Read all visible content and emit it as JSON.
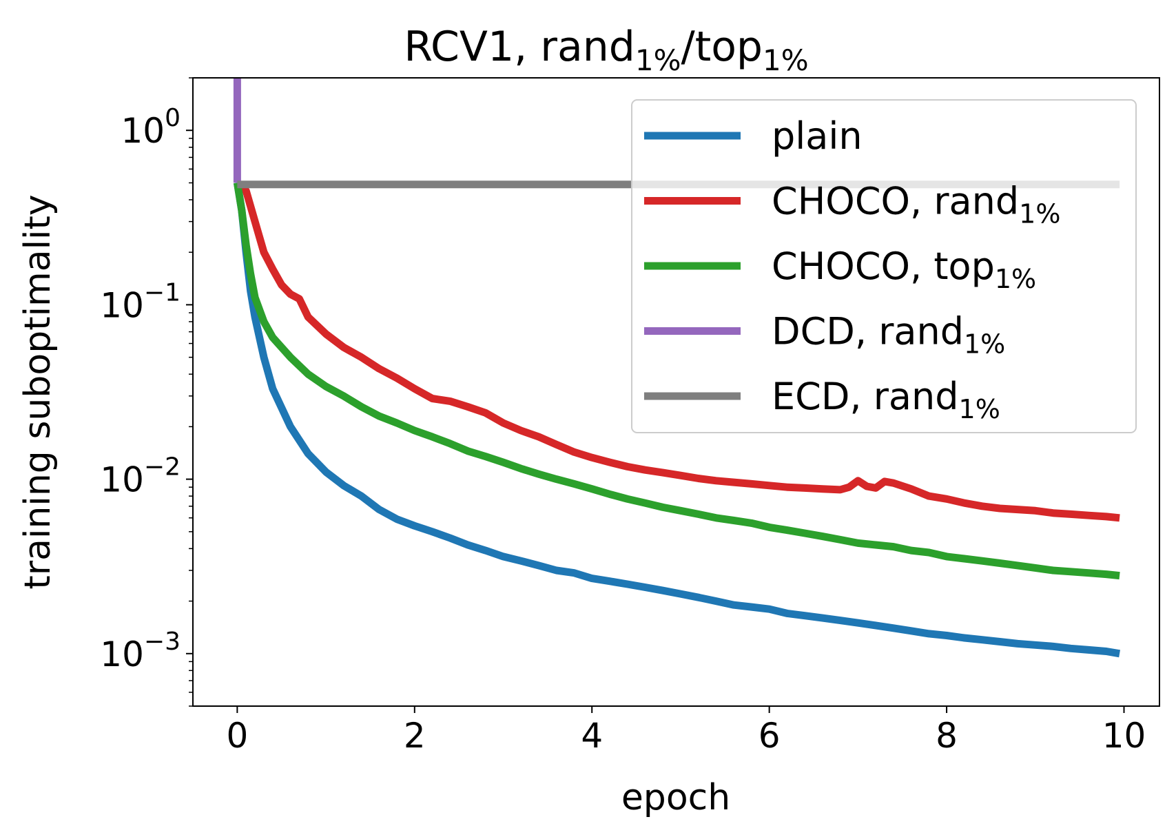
{
  "chart_data": {
    "type": "line",
    "title": {
      "main": "RCV1, rand",
      "sub1": "1%",
      "mid": "/top",
      "sub2": "1%"
    },
    "xlabel": "epoch",
    "ylabel": "training suboptimality",
    "xlim": [
      -0.5,
      10.4
    ],
    "ylim": [
      0.0005,
      2.0
    ],
    "yscale": "log",
    "xticks": [
      0,
      2,
      4,
      6,
      8,
      10
    ],
    "xtick_labels": [
      "0",
      "2",
      "4",
      "6",
      "8",
      "10"
    ],
    "yticks": [
      {
        "value": 1,
        "base": "10",
        "exp": "0"
      },
      {
        "value": 0.1,
        "base": "10",
        "exp": "−1"
      },
      {
        "value": 0.01,
        "base": "10",
        "exp": "−2"
      },
      {
        "value": 0.001,
        "base": "10",
        "exp": "−3"
      }
    ],
    "legend_position": "top-right",
    "series": [
      {
        "name": "plain",
        "label_main": "plain",
        "label_sub": "",
        "color": "#1f77b4",
        "points": [
          [
            0,
            0.5
          ],
          [
            0.05,
            0.35
          ],
          [
            0.1,
            0.2
          ],
          [
            0.15,
            0.12
          ],
          [
            0.2,
            0.085
          ],
          [
            0.3,
            0.05
          ],
          [
            0.4,
            0.033
          ],
          [
            0.6,
            0.02
          ],
          [
            0.8,
            0.014
          ],
          [
            1.0,
            0.011
          ],
          [
            1.2,
            0.0092
          ],
          [
            1.4,
            0.008
          ],
          [
            1.6,
            0.0067
          ],
          [
            1.8,
            0.0059
          ],
          [
            2.0,
            0.0054
          ],
          [
            2.2,
            0.005
          ],
          [
            2.4,
            0.0046
          ],
          [
            2.6,
            0.0042
          ],
          [
            2.8,
            0.0039
          ],
          [
            3.0,
            0.0036
          ],
          [
            3.2,
            0.0034
          ],
          [
            3.4,
            0.0032
          ],
          [
            3.6,
            0.003
          ],
          [
            3.8,
            0.0029
          ],
          [
            4.0,
            0.0027
          ],
          [
            4.2,
            0.0026
          ],
          [
            4.4,
            0.0025
          ],
          [
            4.6,
            0.0024
          ],
          [
            4.8,
            0.0023
          ],
          [
            5.0,
            0.0022
          ],
          [
            5.2,
            0.0021
          ],
          [
            5.4,
            0.002
          ],
          [
            5.6,
            0.0019
          ],
          [
            5.8,
            0.00185
          ],
          [
            6.0,
            0.0018
          ],
          [
            6.2,
            0.0017
          ],
          [
            6.4,
            0.00165
          ],
          [
            6.6,
            0.0016
          ],
          [
            6.8,
            0.00155
          ],
          [
            7.0,
            0.0015
          ],
          [
            7.2,
            0.00145
          ],
          [
            7.4,
            0.0014
          ],
          [
            7.6,
            0.00135
          ],
          [
            7.8,
            0.0013
          ],
          [
            8.0,
            0.00127
          ],
          [
            8.2,
            0.00123
          ],
          [
            8.4,
            0.0012
          ],
          [
            8.6,
            0.00117
          ],
          [
            8.8,
            0.00114
          ],
          [
            9.0,
            0.00112
          ],
          [
            9.2,
            0.0011
          ],
          [
            9.4,
            0.00107
          ],
          [
            9.6,
            0.00105
          ],
          [
            9.8,
            0.00103
          ],
          [
            9.95,
            0.001
          ]
        ]
      },
      {
        "name": "CHOCO, rand1%",
        "label_main": "CHOCO,  rand",
        "label_sub": "1%",
        "color": "#d62728",
        "points": [
          [
            0,
            0.5
          ],
          [
            0.1,
            0.45
          ],
          [
            0.2,
            0.3
          ],
          [
            0.3,
            0.2
          ],
          [
            0.4,
            0.16
          ],
          [
            0.5,
            0.13
          ],
          [
            0.6,
            0.115
          ],
          [
            0.7,
            0.108
          ],
          [
            0.8,
            0.085
          ],
          [
            1.0,
            0.068
          ],
          [
            1.2,
            0.057
          ],
          [
            1.4,
            0.05
          ],
          [
            1.6,
            0.043
          ],
          [
            1.8,
            0.038
          ],
          [
            2.0,
            0.033
          ],
          [
            2.2,
            0.029
          ],
          [
            2.4,
            0.028
          ],
          [
            2.6,
            0.026
          ],
          [
            2.8,
            0.024
          ],
          [
            3.0,
            0.021
          ],
          [
            3.2,
            0.019
          ],
          [
            3.4,
            0.0175
          ],
          [
            3.6,
            0.0158
          ],
          [
            3.8,
            0.0143
          ],
          [
            4.0,
            0.0133
          ],
          [
            4.2,
            0.0125
          ],
          [
            4.4,
            0.0118
          ],
          [
            4.6,
            0.0113
          ],
          [
            4.8,
            0.0109
          ],
          [
            5.0,
            0.0105
          ],
          [
            5.2,
            0.0101
          ],
          [
            5.4,
            0.0098
          ],
          [
            5.6,
            0.0096
          ],
          [
            5.8,
            0.0094
          ],
          [
            6.0,
            0.0092
          ],
          [
            6.2,
            0.009
          ],
          [
            6.4,
            0.0089
          ],
          [
            6.6,
            0.0088
          ],
          [
            6.8,
            0.0087
          ],
          [
            6.9,
            0.009
          ],
          [
            7.0,
            0.0098
          ],
          [
            7.1,
            0.0091
          ],
          [
            7.2,
            0.0089
          ],
          [
            7.3,
            0.0097
          ],
          [
            7.4,
            0.0095
          ],
          [
            7.6,
            0.0088
          ],
          [
            7.8,
            0.008
          ],
          [
            8.0,
            0.0077
          ],
          [
            8.2,
            0.0073
          ],
          [
            8.4,
            0.007
          ],
          [
            8.6,
            0.0068
          ],
          [
            8.8,
            0.0067
          ],
          [
            9.0,
            0.0066
          ],
          [
            9.2,
            0.0064
          ],
          [
            9.4,
            0.0063
          ],
          [
            9.6,
            0.0062
          ],
          [
            9.8,
            0.0061
          ],
          [
            9.95,
            0.006
          ]
        ]
      },
      {
        "name": "CHOCO, top1%",
        "label_main": "CHOCO,  top",
        "label_sub": "1%",
        "color": "#2ca02c",
        "points": [
          [
            0,
            0.5
          ],
          [
            0.05,
            0.35
          ],
          [
            0.1,
            0.22
          ],
          [
            0.15,
            0.15
          ],
          [
            0.2,
            0.11
          ],
          [
            0.3,
            0.08
          ],
          [
            0.4,
            0.065
          ],
          [
            0.6,
            0.05
          ],
          [
            0.8,
            0.04
          ],
          [
            1.0,
            0.034
          ],
          [
            1.2,
            0.03
          ],
          [
            1.4,
            0.026
          ],
          [
            1.6,
            0.023
          ],
          [
            1.8,
            0.021
          ],
          [
            2.0,
            0.019
          ],
          [
            2.2,
            0.0175
          ],
          [
            2.4,
            0.016
          ],
          [
            2.6,
            0.0145
          ],
          [
            2.8,
            0.0135
          ],
          [
            3.0,
            0.0125
          ],
          [
            3.2,
            0.0115
          ],
          [
            3.4,
            0.0107
          ],
          [
            3.6,
            0.01
          ],
          [
            3.8,
            0.0094
          ],
          [
            4.0,
            0.0088
          ],
          [
            4.2,
            0.0082
          ],
          [
            4.4,
            0.0077
          ],
          [
            4.6,
            0.0073
          ],
          [
            4.8,
            0.0069
          ],
          [
            5.0,
            0.0066
          ],
          [
            5.2,
            0.0063
          ],
          [
            5.4,
            0.006
          ],
          [
            5.6,
            0.0058
          ],
          [
            5.8,
            0.0056
          ],
          [
            6.0,
            0.0053
          ],
          [
            6.2,
            0.0051
          ],
          [
            6.4,
            0.0049
          ],
          [
            6.6,
            0.0047
          ],
          [
            6.8,
            0.0045
          ],
          [
            7.0,
            0.0043
          ],
          [
            7.2,
            0.0042
          ],
          [
            7.4,
            0.0041
          ],
          [
            7.6,
            0.0039
          ],
          [
            7.8,
            0.0038
          ],
          [
            8.0,
            0.0036
          ],
          [
            8.2,
            0.0035
          ],
          [
            8.4,
            0.0034
          ],
          [
            8.6,
            0.0033
          ],
          [
            8.8,
            0.0032
          ],
          [
            9.0,
            0.0031
          ],
          [
            9.2,
            0.003
          ],
          [
            9.4,
            0.00295
          ],
          [
            9.6,
            0.0029
          ],
          [
            9.8,
            0.00285
          ],
          [
            9.95,
            0.0028
          ]
        ]
      },
      {
        "name": "DCD, rand1%",
        "label_main": "DCD,  rand",
        "label_sub": "1%",
        "color": "#9467bd",
        "points": [
          [
            0,
            2.0
          ],
          [
            0,
            0.5
          ]
        ]
      },
      {
        "name": "ECD, rand1%",
        "label_main": "ECD,  rand",
        "label_sub": "1%",
        "color": "#7f7f7f",
        "points": [
          [
            0,
            0.49
          ],
          [
            9.95,
            0.49
          ]
        ]
      }
    ]
  }
}
